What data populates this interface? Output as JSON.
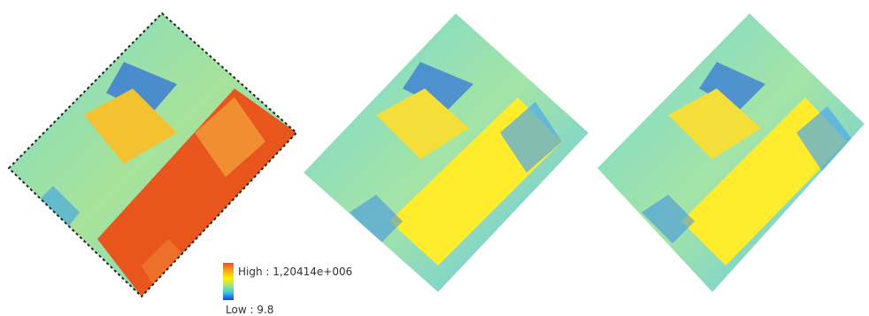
{
  "panels": [
    {
      "name": "raster-panel-1",
      "scheme": "high"
    },
    {
      "name": "raster-panel-2",
      "scheme": "mid"
    },
    {
      "name": "raster-panel-3",
      "scheme": "mid"
    }
  ],
  "legend": {
    "high_label": "High : 1,20414e+006",
    "low_label": "Low : 9.8",
    "colors": [
      "#e8501c",
      "#f5a623",
      "#fff200",
      "#9de08a",
      "#3bc8e0",
      "#1a3fd6"
    ]
  }
}
